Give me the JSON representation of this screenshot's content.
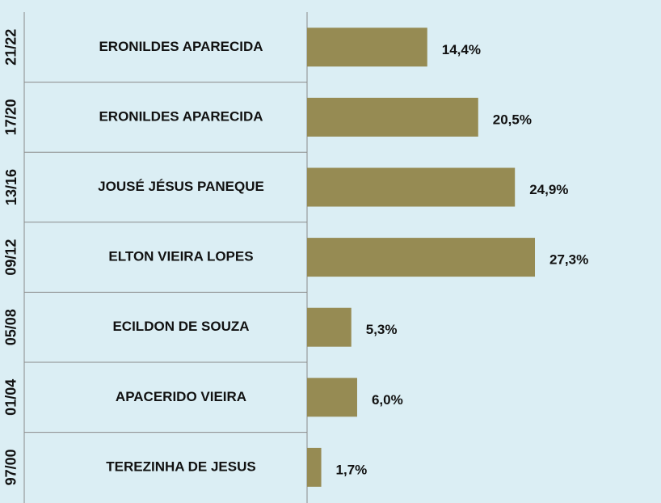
{
  "chart_data": {
    "type": "bar",
    "orientation": "horizontal",
    "groups": [
      "21/22",
      "17/20",
      "13/16",
      "09/12",
      "05/08",
      "01/04",
      "97/00"
    ],
    "categories": [
      "ERONILDES APARECIDA",
      "ERONILDES APARECIDA",
      "JOUSÉ JÉSUS PANEQUE",
      "ELTON VIEIRA LOPES",
      "ECILDON DE SOUZA",
      "APACERIDO VIEIRA",
      "TEREZINHA DE JESUS"
    ],
    "values": [
      14.4,
      20.5,
      24.9,
      27.3,
      5.3,
      6.0,
      1.7
    ],
    "value_labels": [
      "14,4%",
      "20,5%",
      "24,9%",
      "27,3%",
      "5,3%",
      "6,0%",
      "1,7%"
    ],
    "color": "#968b53"
  }
}
